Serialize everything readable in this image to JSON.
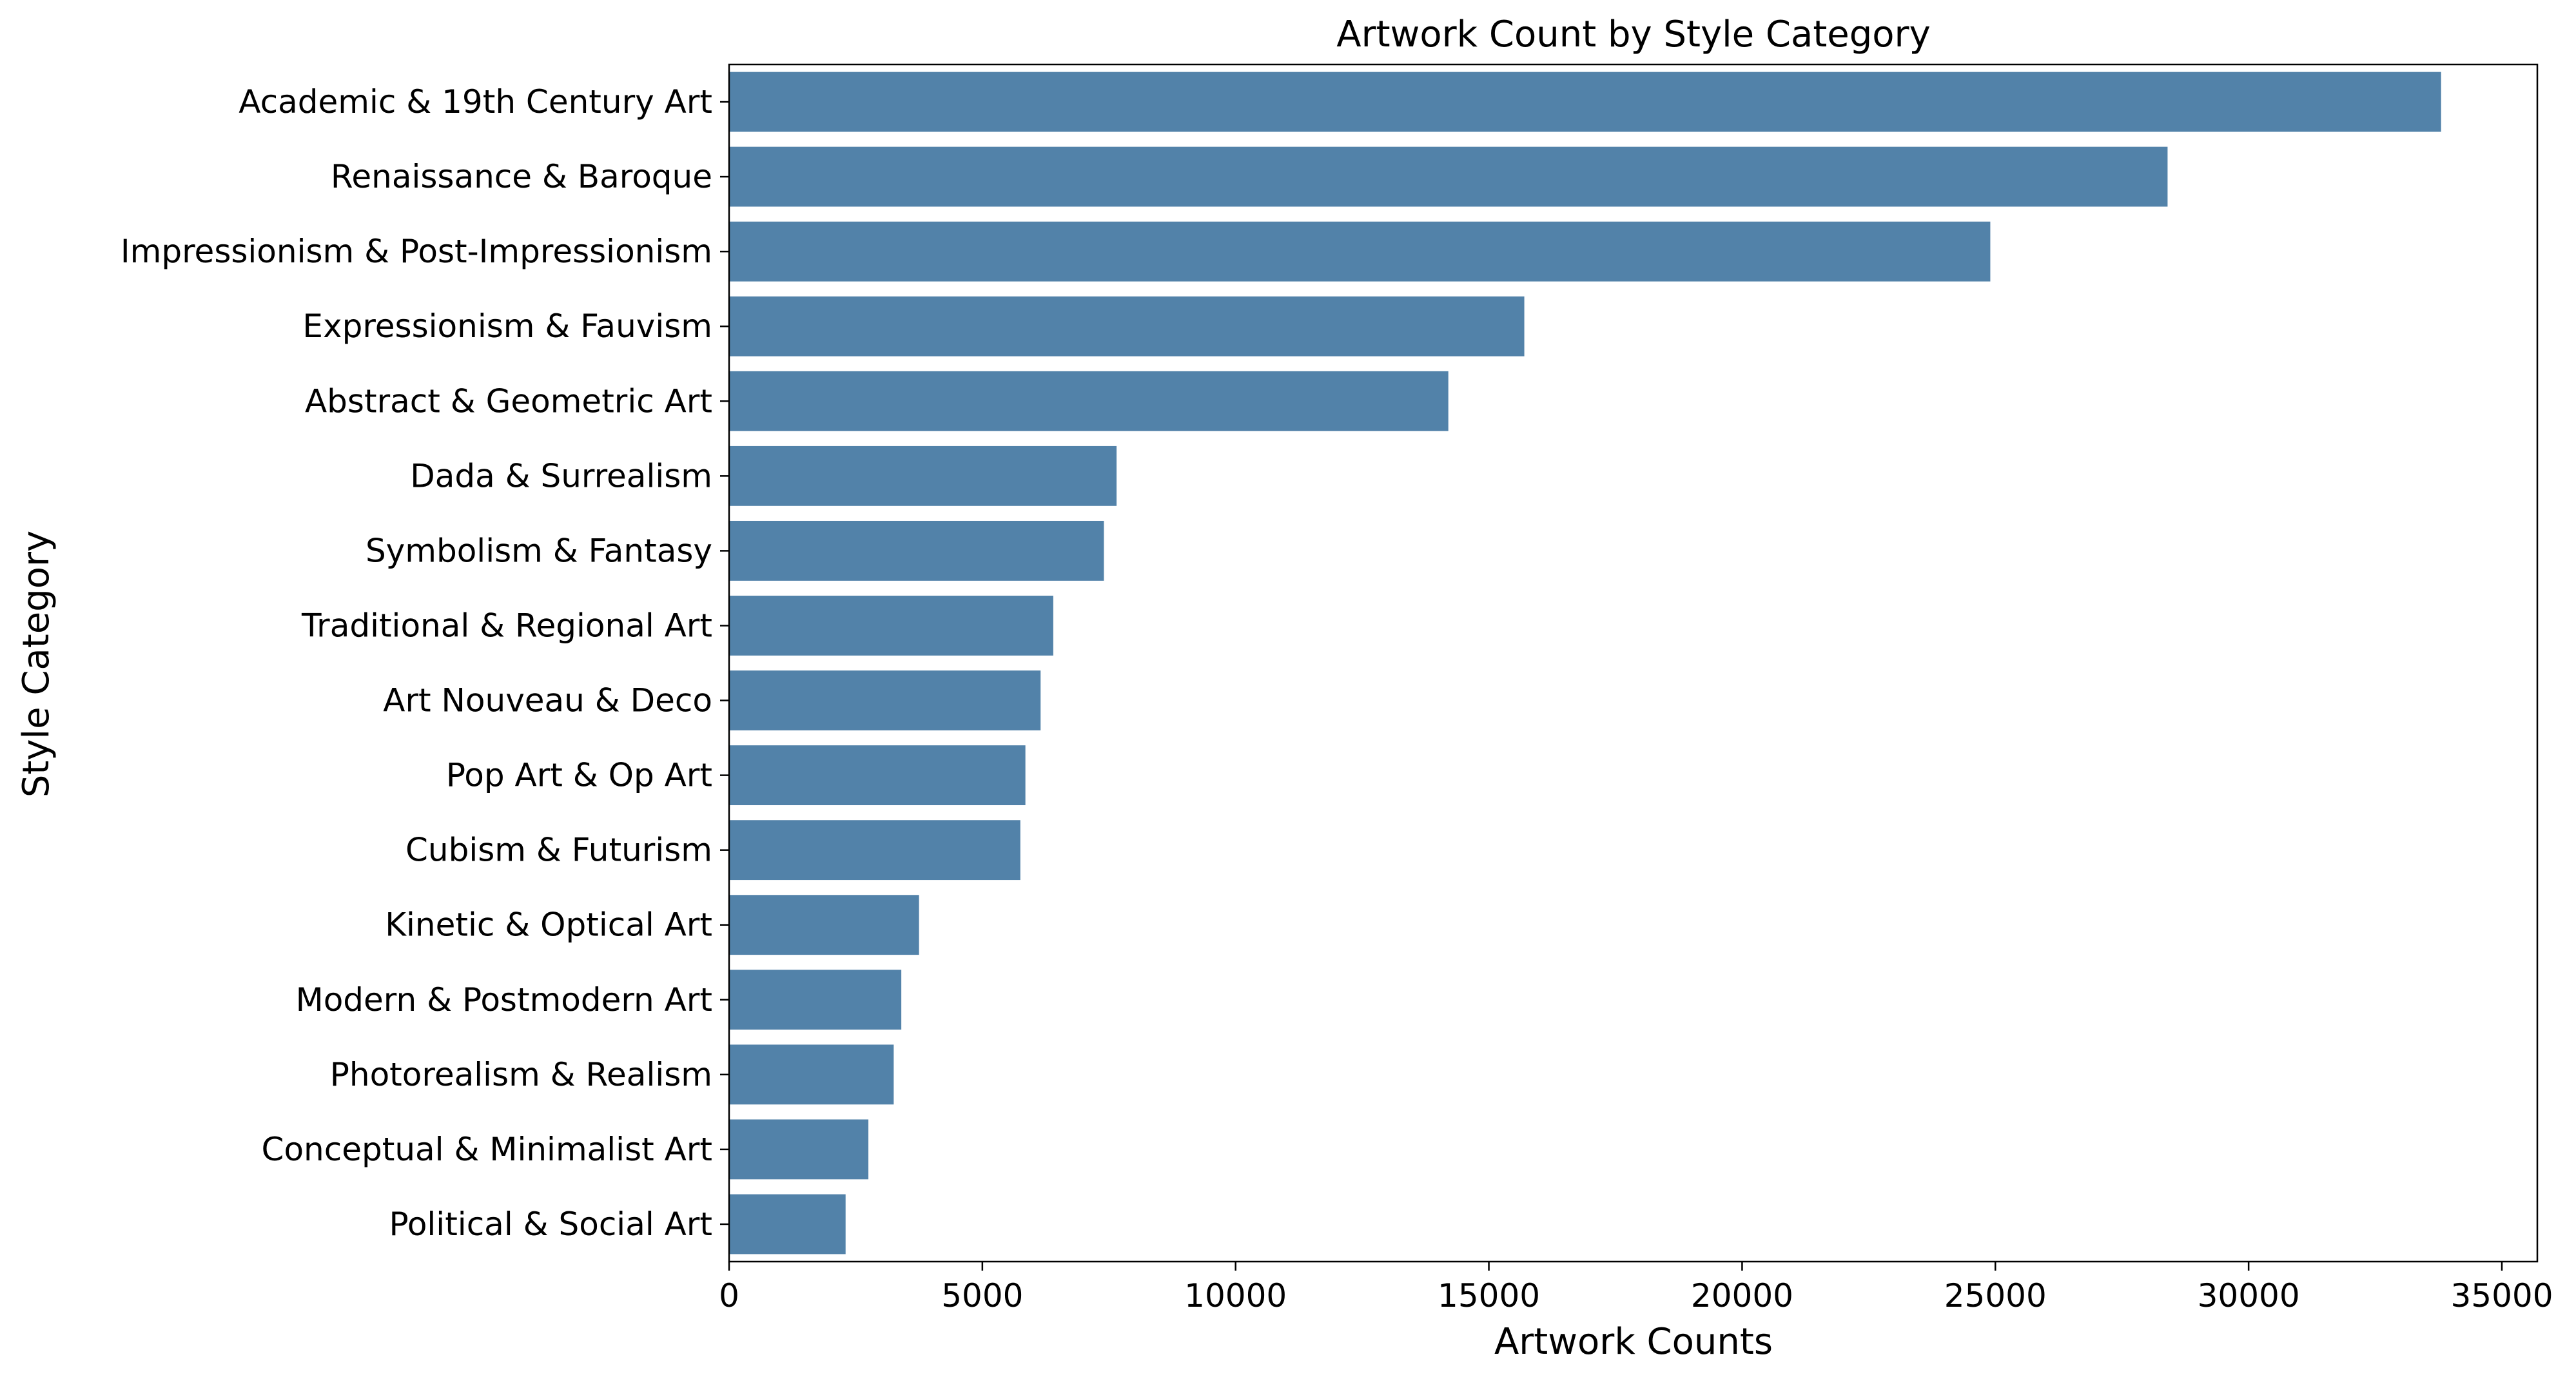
{
  "chart_data": {
    "type": "bar",
    "orientation": "horizontal",
    "title": "Artwork Count by Style Category",
    "xlabel": "Artwork Counts",
    "ylabel": "Style Category",
    "xlim": [
      0,
      35700
    ],
    "xticks": [
      0,
      5000,
      10000,
      15000,
      20000,
      25000,
      30000,
      35000
    ],
    "grid": false,
    "bar_color": "#5282a9",
    "categories": [
      "Academic & 19th Century Art",
      "Renaissance & Baroque",
      "Impressionism & Post-Impressionism",
      "Expressionism & Fauvism",
      "Abstract & Geometric Art",
      "Dada & Surrealism",
      "Symbolism & Fantasy",
      "Traditional & Regional Art",
      "Art Nouveau & Deco",
      "Pop Art & Op Art",
      "Cubism & Futurism",
      "Kinetic & Optical Art",
      "Modern & Postmodern Art",
      "Photorealism & Realism",
      "Conceptual & Minimalist Art",
      "Political & Social Art"
    ],
    "values": [
      33800,
      28400,
      24900,
      15700,
      14200,
      7650,
      7400,
      6400,
      6150,
      5850,
      5750,
      3750,
      3400,
      3250,
      2750,
      2300
    ]
  }
}
